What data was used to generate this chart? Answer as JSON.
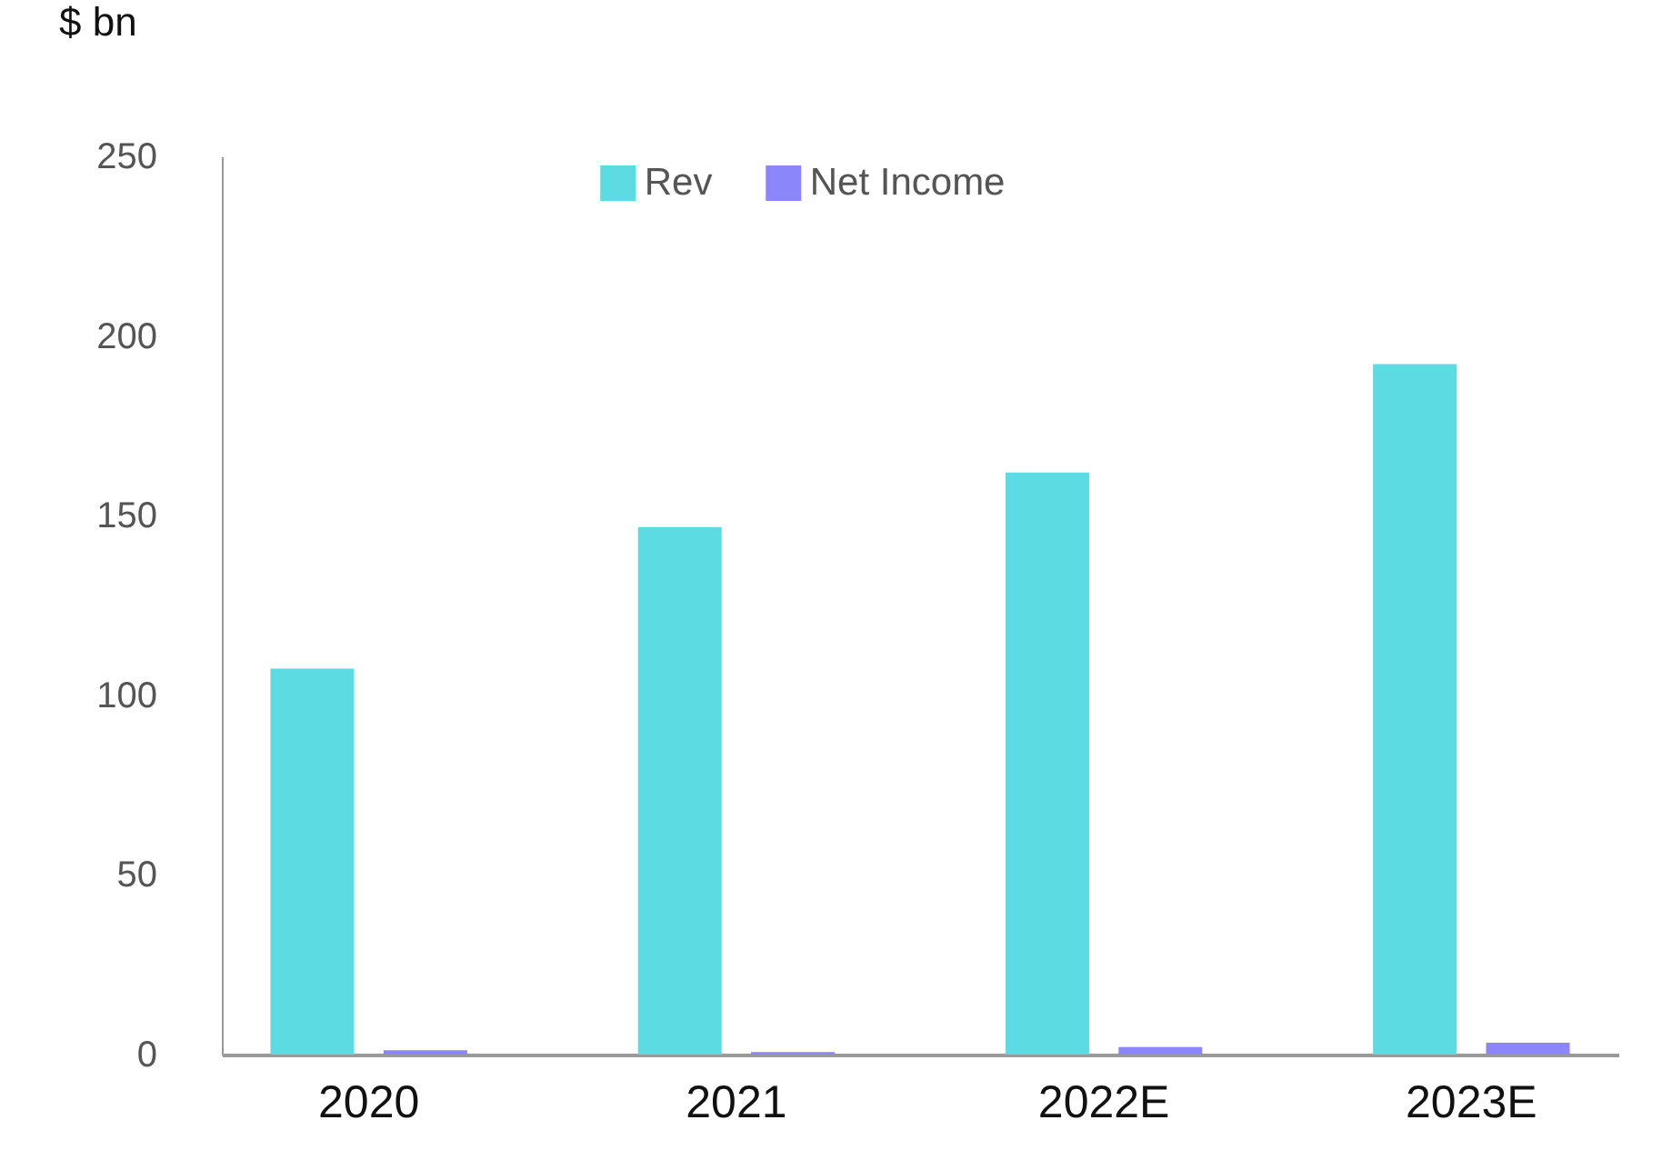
{
  "chart_data": {
    "type": "bar",
    "ylabel": "$ bn",
    "categories": [
      "2020",
      "2021",
      "2022E",
      "2023E"
    ],
    "series": [
      {
        "name": "Rev",
        "color": "#5cdbe2",
        "values": [
          107.4,
          146.8,
          162,
          192.2
        ]
      },
      {
        "name": "Net Income",
        "color": "#8c86fb",
        "values": [
          1.2,
          0.7,
          2.1,
          3.3
        ]
      }
    ],
    "ylim": [
      0,
      250
    ],
    "yticks": [
      0,
      50,
      100,
      150,
      200,
      250
    ],
    "grid": false,
    "legend": "top"
  }
}
